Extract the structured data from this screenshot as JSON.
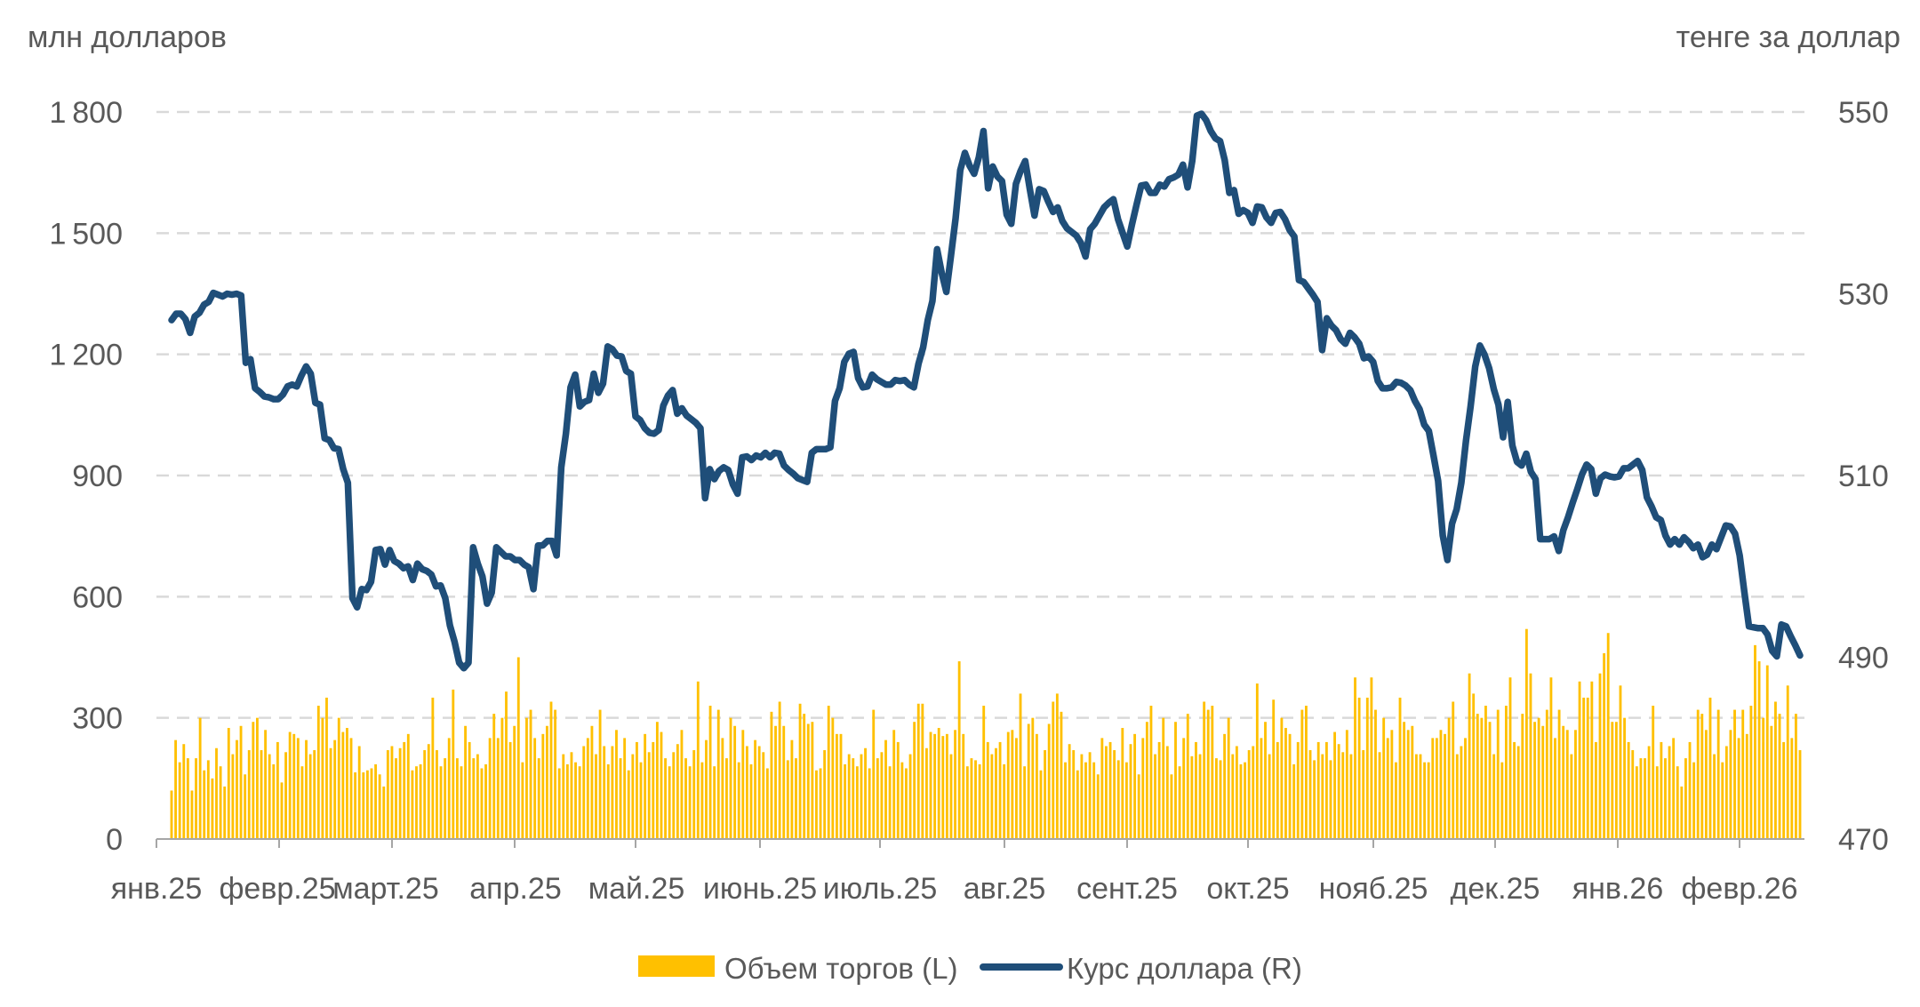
{
  "chart_data": {
    "type": "bar+line",
    "left_axis_title": "млн долларов",
    "right_axis_title": "тенге за доллар",
    "left_axis": {
      "ticks": [
        0,
        300,
        600,
        900,
        1200,
        1500,
        1800
      ],
      "ylim": [
        0,
        1800
      ]
    },
    "right_axis": {
      "ticks": [
        470,
        490,
        510,
        530,
        550
      ],
      "ylim": [
        470,
        550
      ]
    },
    "x_labels": [
      "янв.25",
      "февр.25",
      "март.25",
      "апр.25",
      "май.25",
      "июнь.25",
      "июль.25",
      "авг.25",
      "сент.25",
      "окт.25",
      "нояб.25",
      "дек.25",
      "янв.26",
      "февр.26"
    ],
    "grid": "horizontal dashed",
    "legend_position": "bottom",
    "colors": {
      "bars": "#FFC000",
      "line": "#1F4E79",
      "grid": "#D9D9D9",
      "axis": "#A6A6A6",
      "text": "#595959"
    },
    "series": [
      {
        "name": "Объем торгов (L)",
        "type": "bar",
        "axis": "left",
        "values": [
          120,
          245,
          190,
          235,
          200,
          120,
          200,
          300,
          170,
          195,
          150,
          225,
          180,
          130,
          275,
          210,
          245,
          280,
          160,
          220,
          290,
          300,
          220,
          270,
          210,
          185,
          240,
          140,
          215,
          265,
          260,
          250,
          180,
          245,
          210,
          220,
          330,
          300,
          350,
          225,
          245,
          300,
          265,
          275,
          250,
          165,
          230,
          165,
          170,
          175,
          185,
          160,
          130,
          220,
          230,
          200,
          225,
          240,
          260,
          170,
          180,
          185,
          220,
          235,
          350,
          220,
          180,
          200,
          250,
          370,
          200,
          180,
          280,
          240,
          200,
          210,
          175,
          185,
          250,
          310,
          250,
          300,
          365,
          240,
          280,
          450,
          190,
          300,
          320,
          250,
          200,
          260,
          280,
          340,
          320,
          175,
          210,
          185,
          215,
          190,
          180,
          230,
          250,
          280,
          210,
          320,
          230,
          185,
          230,
          270,
          200,
          250,
          170,
          210,
          240,
          190,
          260,
          215,
          240,
          290,
          265,
          200,
          180,
          215,
          235,
          270,
          200,
          180,
          220,
          390,
          190,
          245,
          330,
          180,
          320,
          250,
          200,
          300,
          280,
          190,
          270,
          230,
          185,
          245,
          230,
          215,
          175,
          315,
          280,
          340,
          280,
          195,
          245,
          200,
          335,
          310,
          285,
          290,
          170,
          175,
          220,
          330,
          300,
          260,
          260,
          185,
          210,
          200,
          180,
          210,
          225,
          175,
          320,
          200,
          215,
          245,
          180,
          270,
          240,
          190,
          175,
          210,
          290,
          335,
          335,
          225,
          265,
          260,
          275,
          255,
          260,
          210,
          270,
          440,
          260,
          180,
          200,
          195,
          185,
          330,
          240,
          210,
          225,
          240,
          185,
          265,
          270,
          250,
          360,
          180,
          285,
          300,
          260,
          170,
          220,
          285,
          340,
          360,
          315,
          190,
          235,
          220,
          170,
          210,
          190,
          215,
          190,
          160,
          250,
          230,
          240,
          220,
          195,
          275,
          190,
          235,
          260,
          160,
          250,
          290,
          330,
          210,
          240,
          300,
          230,
          160,
          290,
          180,
          250,
          310,
          205,
          240,
          210,
          340,
          320,
          330,
          200,
          195,
          260,
          300,
          210,
          230,
          185,
          190,
          220,
          230,
          385,
          250,
          290,
          210,
          345,
          240,
          300,
          275,
          260,
          185,
          240,
          320,
          330,
          220,
          195,
          240,
          210,
          240,
          195,
          265,
          235,
          215,
          270,
          210,
          400,
          350,
          220,
          350,
          400,
          320,
          215,
          300,
          250,
          270,
          190,
          350,
          290,
          270,
          280,
          210,
          210,
          190,
          190,
          250,
          250,
          270,
          260,
          300,
          340,
          210,
          230,
          250,
          410,
          360,
          310,
          300,
          330,
          290,
          210,
          320,
          190,
          330,
          400,
          240,
          230,
          310,
          520,
          410,
          290,
          300,
          280,
          320,
          400,
          250,
          320,
          280,
          270,
          210,
          270,
          390,
          350,
          350,
          390,
          240,
          410,
          460,
          510,
          290,
          290,
          380,
          300,
          240,
          220,
          180,
          200,
          200,
          230,
          330,
          180,
          240,
          200,
          230,
          250,
          180,
          130,
          200,
          240,
          190,
          320,
          310,
          270,
          350,
          210,
          320,
          190,
          230,
          270,
          320,
          250,
          320,
          260,
          330,
          480,
          440,
          300,
          430,
          280,
          340,
          310,
          240,
          380,
          250,
          310,
          220
        ]
      },
      {
        "name": "Курс доллара (R)",
        "type": "line",
        "axis": "right",
        "values": [
          527.1,
          527.8,
          527.8,
          527.2,
          525.7,
          527.5,
          527.9,
          528.8,
          529.1,
          530.1,
          529.9,
          529.7,
          530.0,
          529.9,
          530.0,
          529.8,
          522.4,
          522.8,
          519.6,
          519.2,
          518.7,
          518.6,
          518.4,
          518.4,
          518.9,
          519.8,
          520.0,
          519.8,
          521.0,
          522.0,
          521.2,
          518.0,
          517.8,
          514.1,
          513.9,
          513.0,
          512.9,
          510.7,
          509.2,
          496.5,
          495.5,
          497.5,
          497.4,
          498.3,
          501.8,
          501.9,
          500.2,
          501.8,
          500.6,
          500.3,
          499.8,
          500.0,
          498.5,
          500.3,
          499.7,
          499.5,
          499.1,
          497.8,
          497.9,
          496.5,
          493.5,
          491.7,
          489.4,
          488.8,
          489.4,
          502.1,
          500.3,
          498.9,
          495.9,
          497.1,
          502.1,
          501.6,
          501.1,
          501.1,
          500.7,
          500.7,
          500.2,
          499.9,
          497.5,
          502.3,
          502.3,
          502.8,
          502.8,
          501.2,
          510.9,
          514.6,
          519.7,
          521.1,
          517.6,
          518.1,
          518.3,
          521.2,
          519.1,
          520.1,
          524.2,
          523.9,
          523.2,
          523.1,
          521.5,
          521.2,
          516.5,
          516.1,
          515.2,
          514.7,
          514.6,
          515.0,
          517.7,
          518.8,
          519.4,
          516.8,
          517.4,
          516.6,
          516.2,
          515.8,
          515.2,
          507.5,
          510.7,
          509.6,
          510.5,
          510.9,
          510.6,
          509.0,
          508.0,
          512.0,
          512.1,
          511.7,
          512.2,
          512.0,
          512.5,
          512.0,
          512.5,
          512.4,
          511.1,
          510.6,
          510.2,
          509.7,
          509.5,
          509.3,
          512.5,
          512.9,
          512.9,
          512.9,
          513.1,
          518.2,
          519.6,
          522.5,
          523.4,
          523.6,
          520.7,
          519.7,
          519.8,
          521.1,
          520.6,
          520.3,
          520.0,
          520.0,
          520.5,
          520.4,
          520.5,
          520.0,
          519.7,
          522.3,
          524.1,
          527.1,
          529.2,
          534.9,
          532.3,
          530.2,
          534.2,
          538.3,
          543.6,
          545.5,
          544.1,
          543.2,
          545.0,
          547.9,
          541.6,
          544.0,
          542.9,
          542.4,
          538.7,
          537.7,
          542.1,
          543.5,
          544.6,
          541.5,
          538.6,
          541.5,
          541.3,
          540.1,
          539.0,
          539.5,
          538.0,
          537.2,
          536.8,
          536.4,
          535.6,
          534.1,
          537.1,
          537.7,
          538.6,
          539.5,
          540.0,
          540.4,
          538.2,
          536.7,
          535.2,
          537.6,
          539.8,
          541.9,
          542.0,
          541.1,
          541.1,
          542.0,
          541.8,
          542.6,
          542.8,
          543.1,
          544.2,
          541.7,
          544.6,
          549.6,
          549.8,
          549.1,
          547.9,
          547.1,
          546.8,
          544.7,
          541.1,
          541.4,
          538.8,
          539.2,
          538.9,
          537.8,
          539.6,
          539.5,
          538.4,
          537.8,
          538.9,
          539.0,
          538.2,
          537.0,
          536.3,
          531.5,
          531.3,
          530.6,
          529.9,
          529.1,
          523.8,
          527.3,
          526.5,
          526.0,
          525.0,
          524.5,
          525.7,
          525.2,
          524.5,
          522.9,
          523.1,
          522.5,
          520.4,
          519.6,
          519.6,
          519.7,
          520.3,
          520.2,
          519.9,
          519.4,
          518.2,
          517.3,
          515.6,
          514.9,
          512.2,
          509.4,
          503.4,
          500.7,
          504.7,
          506.3,
          509.2,
          513.8,
          517.6,
          522.0,
          524.3,
          523.3,
          521.8,
          519.5,
          517.8,
          514.2,
          518.1,
          513.3,
          511.5,
          511.1,
          512.4,
          510.4,
          509.6,
          503.0,
          503.0,
          503.0,
          503.3,
          501.7,
          504.0,
          505.4,
          507.0,
          508.5,
          510.1,
          511.2,
          510.7,
          508.0,
          509.7,
          510.1,
          509.9,
          509.8,
          509.9,
          510.8,
          510.8,
          511.2,
          511.6,
          510.6,
          507.6,
          506.6,
          505.4,
          505.1,
          503.4,
          502.4,
          503.0,
          502.4,
          503.2,
          502.7,
          502.0,
          502.4,
          501.0,
          501.3,
          502.4,
          501.9,
          503.2,
          504.5,
          504.4,
          503.6,
          501.2,
          497.2,
          493.4,
          493.3,
          493.2,
          493.2,
          492.5,
          490.7,
          490.1,
          493.6,
          493.4,
          492.3,
          491.3,
          490.2
        ]
      }
    ]
  },
  "legend": {
    "bars_label": "Объем торгов (L)",
    "line_label": "Курс доллара (R)"
  }
}
